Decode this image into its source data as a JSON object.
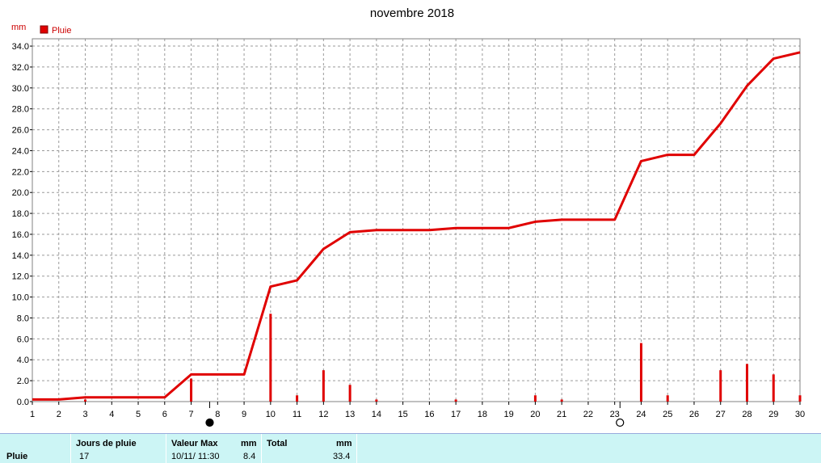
{
  "chart_data": {
    "type": "line",
    "title": "novembre 2018",
    "ylabel": "mm",
    "legend": [
      {
        "name": "Pluie",
        "color": "#e00000"
      }
    ],
    "legend_position": "top-left",
    "grid": true,
    "ylim": [
      0,
      34.7
    ],
    "xlim": [
      1,
      30
    ],
    "yticks": [
      "0.0",
      "2.0",
      "4.0",
      "6.0",
      "8.0",
      "10.0",
      "12.0",
      "14.0",
      "16.0",
      "18.0",
      "20.0",
      "22.0",
      "24.0",
      "26.0",
      "28.0",
      "30.0",
      "32.0",
      "34.0"
    ],
    "xticks": [
      "1",
      "2",
      "3",
      "4",
      "5",
      "6",
      "7",
      "8",
      "9",
      "10",
      "11",
      "12",
      "13",
      "14",
      "15",
      "16",
      "17",
      "18",
      "19",
      "20",
      "21",
      "22",
      "23",
      "24",
      "25",
      "26",
      "27",
      "28",
      "29",
      "30"
    ],
    "series": [
      {
        "name": "Pluie",
        "kind": "cumulative-line",
        "color": "#e00000",
        "x": [
          1,
          2,
          3,
          4,
          5,
          6,
          7,
          8,
          9,
          10,
          11,
          12,
          13,
          14,
          15,
          16,
          17,
          18,
          19,
          20,
          21,
          22,
          23,
          24,
          25,
          26,
          27,
          28,
          29,
          30
        ],
        "y": [
          0.2,
          0.2,
          0.4,
          0.4,
          0.4,
          0.4,
          2.6,
          2.6,
          2.6,
          11.0,
          11.6,
          14.6,
          16.2,
          16.4,
          16.4,
          16.4,
          16.6,
          16.6,
          16.6,
          17.2,
          17.4,
          17.4,
          17.4,
          23.0,
          23.6,
          23.6,
          26.6,
          30.2,
          32.8,
          33.4
        ]
      },
      {
        "name": "Pluie",
        "kind": "daily-bars",
        "color": "#e00000",
        "x": [
          3,
          7,
          10,
          11,
          12,
          13,
          14,
          17,
          20,
          21,
          24,
          25,
          27,
          28,
          29,
          30
        ],
        "y": [
          0.2,
          2.2,
          8.4,
          0.6,
          3.0,
          1.6,
          0.2,
          0.2,
          0.6,
          0.2,
          5.6,
          0.6,
          3.0,
          3.6,
          2.6,
          0.6
        ]
      }
    ],
    "moon_phases": [
      {
        "day": 7.7,
        "phase": "new-moon"
      },
      {
        "day": 23.2,
        "phase": "full-moon"
      }
    ]
  },
  "summary": {
    "row_label": "Pluie",
    "rain_days_label": "Jours de pluie",
    "rain_days_value": "17",
    "max_label": "Valeur Max",
    "max_unit": "mm",
    "max_date": "10/11/ 11:30",
    "max_value": "8.4",
    "total_label": "Total",
    "total_unit": "mm",
    "total_value": "33.4"
  }
}
